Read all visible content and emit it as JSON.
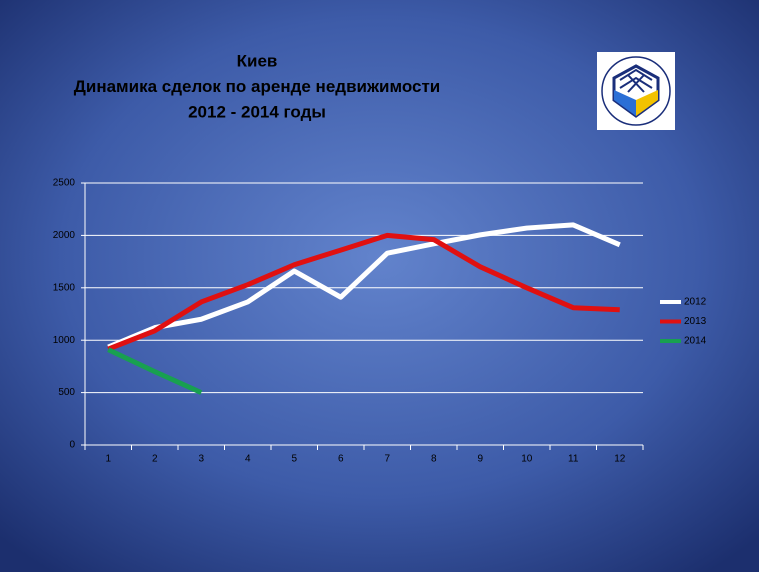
{
  "chart_data": {
    "type": "line",
    "title": [
      "Киев",
      "Динамика сделок по аренде недвижимости",
      "2012 - 2014 годы"
    ],
    "categories": [
      1,
      2,
      3,
      4,
      5,
      6,
      7,
      8,
      9,
      10,
      11,
      12
    ],
    "series": [
      {
        "name": "2012",
        "color": "#ffffff",
        "values": [
          935,
          1120,
          1200,
          1365,
          1660,
          1410,
          1830,
          1920,
          2005,
          2070,
          2100,
          1910
        ]
      },
      {
        "name": "2013",
        "color": "#e01010",
        "values": [
          915,
          1090,
          1365,
          1530,
          1720,
          1860,
          2000,
          1960,
          1700,
          1500,
          1310,
          1290
        ]
      },
      {
        "name": "2014",
        "color": "#18a050",
        "values": [
          910,
          700,
          500,
          null,
          null,
          null,
          null,
          null,
          null,
          null,
          null,
          null
        ]
      }
    ],
    "ylim": [
      0,
      2500
    ],
    "yticks": [
      0,
      500,
      1000,
      1500,
      2000,
      2500
    ],
    "grid": true,
    "legend": "right"
  }
}
